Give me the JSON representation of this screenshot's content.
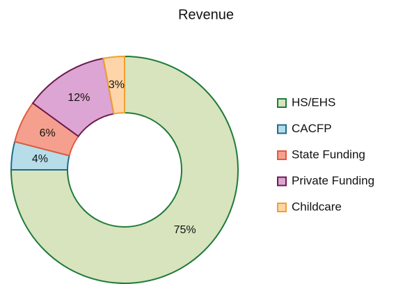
{
  "chart_data": {
    "type": "donut",
    "title": "Revenue",
    "categories": [
      "HS/EHS",
      "CACFP",
      "State Funding",
      "Private Funding",
      "Childcare"
    ],
    "values": [
      75,
      4,
      6,
      12,
      3
    ],
    "value_labels": [
      "75%",
      "4%",
      "6%",
      "12%",
      "3%"
    ],
    "colors": [
      "#d7e4bd",
      "#b7dde8",
      "#f5a08e",
      "#dda5d3",
      "#fdd5a9"
    ],
    "edge_colors": [
      "#1f7a3a",
      "#1d6b8c",
      "#e25a3e",
      "#6b1b4c",
      "#f0a030"
    ],
    "legend": "right"
  }
}
